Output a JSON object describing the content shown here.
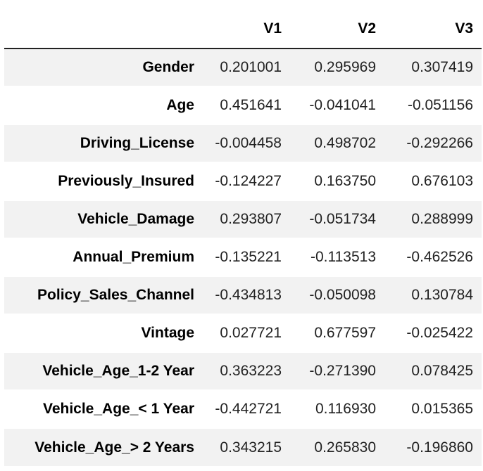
{
  "table": {
    "columns": [
      "",
      "V1",
      "V2",
      "V3"
    ],
    "rows": [
      {
        "label": "Gender",
        "values": [
          "0.201001",
          "0.295969",
          "0.307419"
        ]
      },
      {
        "label": "Age",
        "values": [
          "0.451641",
          "-0.041041",
          "-0.051156"
        ]
      },
      {
        "label": "Driving_License",
        "values": [
          "-0.004458",
          "0.498702",
          "-0.292266"
        ]
      },
      {
        "label": "Previously_Insured",
        "values": [
          "-0.124227",
          "0.163750",
          "0.676103"
        ]
      },
      {
        "label": "Vehicle_Damage",
        "values": [
          "0.293807",
          "-0.051734",
          "0.288999"
        ]
      },
      {
        "label": "Annual_Premium",
        "values": [
          "-0.135221",
          "-0.113513",
          "-0.462526"
        ]
      },
      {
        "label": "Policy_Sales_Channel",
        "values": [
          "-0.434813",
          "-0.050098",
          "0.130784"
        ]
      },
      {
        "label": "Vintage",
        "values": [
          "0.027721",
          "0.677597",
          "-0.025422"
        ]
      },
      {
        "label": "Vehicle_Age_1-2 Year",
        "values": [
          "0.363223",
          "-0.271390",
          "0.078425"
        ]
      },
      {
        "label": "Vehicle_Age_< 1 Year",
        "values": [
          "-0.442721",
          "0.116930",
          "0.015365"
        ]
      },
      {
        "label": "Vehicle_Age_> 2 Years",
        "values": [
          "0.343215",
          "0.265830",
          "-0.196860"
        ]
      }
    ]
  }
}
